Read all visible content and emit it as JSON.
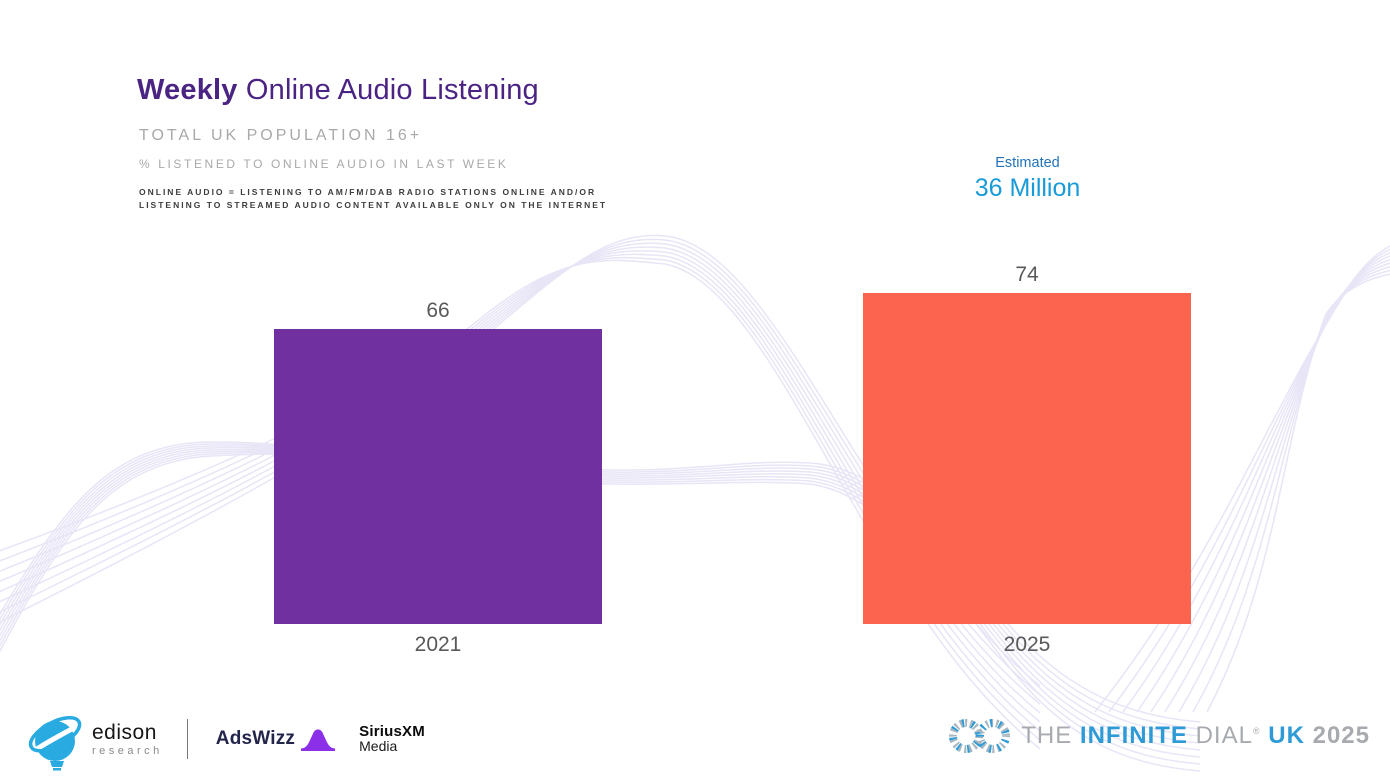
{
  "slide": {
    "title_bold": "Weekly",
    "title_rest": " Online Audio Listening",
    "subtitle": "TOTAL UK POPULATION 16+",
    "measure_note": "% LISTENED TO ONLINE AUDIO IN LAST WEEK",
    "footnote_line1": "ONLINE AUDIO = LISTENING TO AM/FM/DAB RADIO STATIONS ONLINE AND/OR",
    "footnote_line2": "LISTENING TO STREAMED AUDIO CONTENT AVAILABLE ONLY ON THE INTERNET"
  },
  "chart_data": {
    "type": "bar",
    "title": "Weekly Online Audio Listening",
    "subtitle": "Total UK Population 16+",
    "ylabel": "% listened to online audio in last week",
    "xlabel": "",
    "categories": [
      "2021",
      "2025"
    ],
    "values": [
      66,
      74
    ],
    "bar_colors": [
      "#7030a0",
      "#fd6450"
    ],
    "value_label_color": "#595959",
    "ylim": [
      0,
      100
    ],
    "grid": false,
    "legend": "none",
    "annotation": {
      "label": "Estimated",
      "value": "36 Million",
      "applies_to": "2025"
    }
  },
  "footer": {
    "edison": {
      "name": "edison",
      "sub": "research"
    },
    "adswizz": {
      "name": "AdsWizz"
    },
    "siriusxm": {
      "line1": "SiriusXM",
      "line2": "Media"
    },
    "infinite_dial": {
      "the": "THE",
      "infinite": "INFINITE",
      "dial": "DIAL",
      "reg": "®",
      "uk": "UK",
      "year": "2025"
    }
  },
  "colors": {
    "title_purple": "#4b2383",
    "bar_2021": "#7030a0",
    "bar_2025": "#fd6450",
    "estimate_label_blue": "#2273b9",
    "estimate_value_blue": "#189bd8",
    "infinite_dial_blue": "#2e9bd6",
    "edison_blue": "#29abe2",
    "adswizz_purple": "#8b2fe8",
    "wave_lavender": "#e7e5f6"
  }
}
